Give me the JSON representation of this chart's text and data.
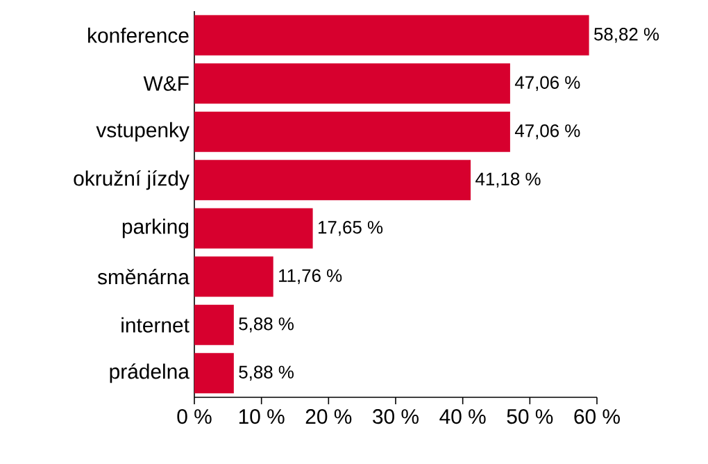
{
  "chart_data": {
    "type": "bar",
    "orientation": "horizontal",
    "categories": [
      "konference",
      "W&F",
      "vstupenky",
      "okružní jízdy",
      "parking",
      "směnárna",
      "internet",
      "prádelna"
    ],
    "values": [
      58.82,
      47.06,
      47.06,
      41.18,
      17.65,
      11.76,
      5.88,
      5.88
    ],
    "value_labels": [
      "58,82 %",
      "47,06 %",
      "47,06 %",
      "41,18 %",
      "17,65 %",
      "11,76 %",
      "5,88 %",
      "5,88 %"
    ],
    "color": "#d7002e",
    "xlim": [
      0,
      60
    ],
    "xticks": [
      {
        "value": 0,
        "label": "0 %"
      },
      {
        "value": 10,
        "label": "10 %"
      },
      {
        "value": 20,
        "label": "20 %"
      },
      {
        "value": 30,
        "label": "30 %"
      },
      {
        "value": 40,
        "label": "40 %"
      },
      {
        "value": 50,
        "label": "50 %"
      },
      {
        "value": 60,
        "label": "60 %"
      }
    ],
    "grid": false
  }
}
